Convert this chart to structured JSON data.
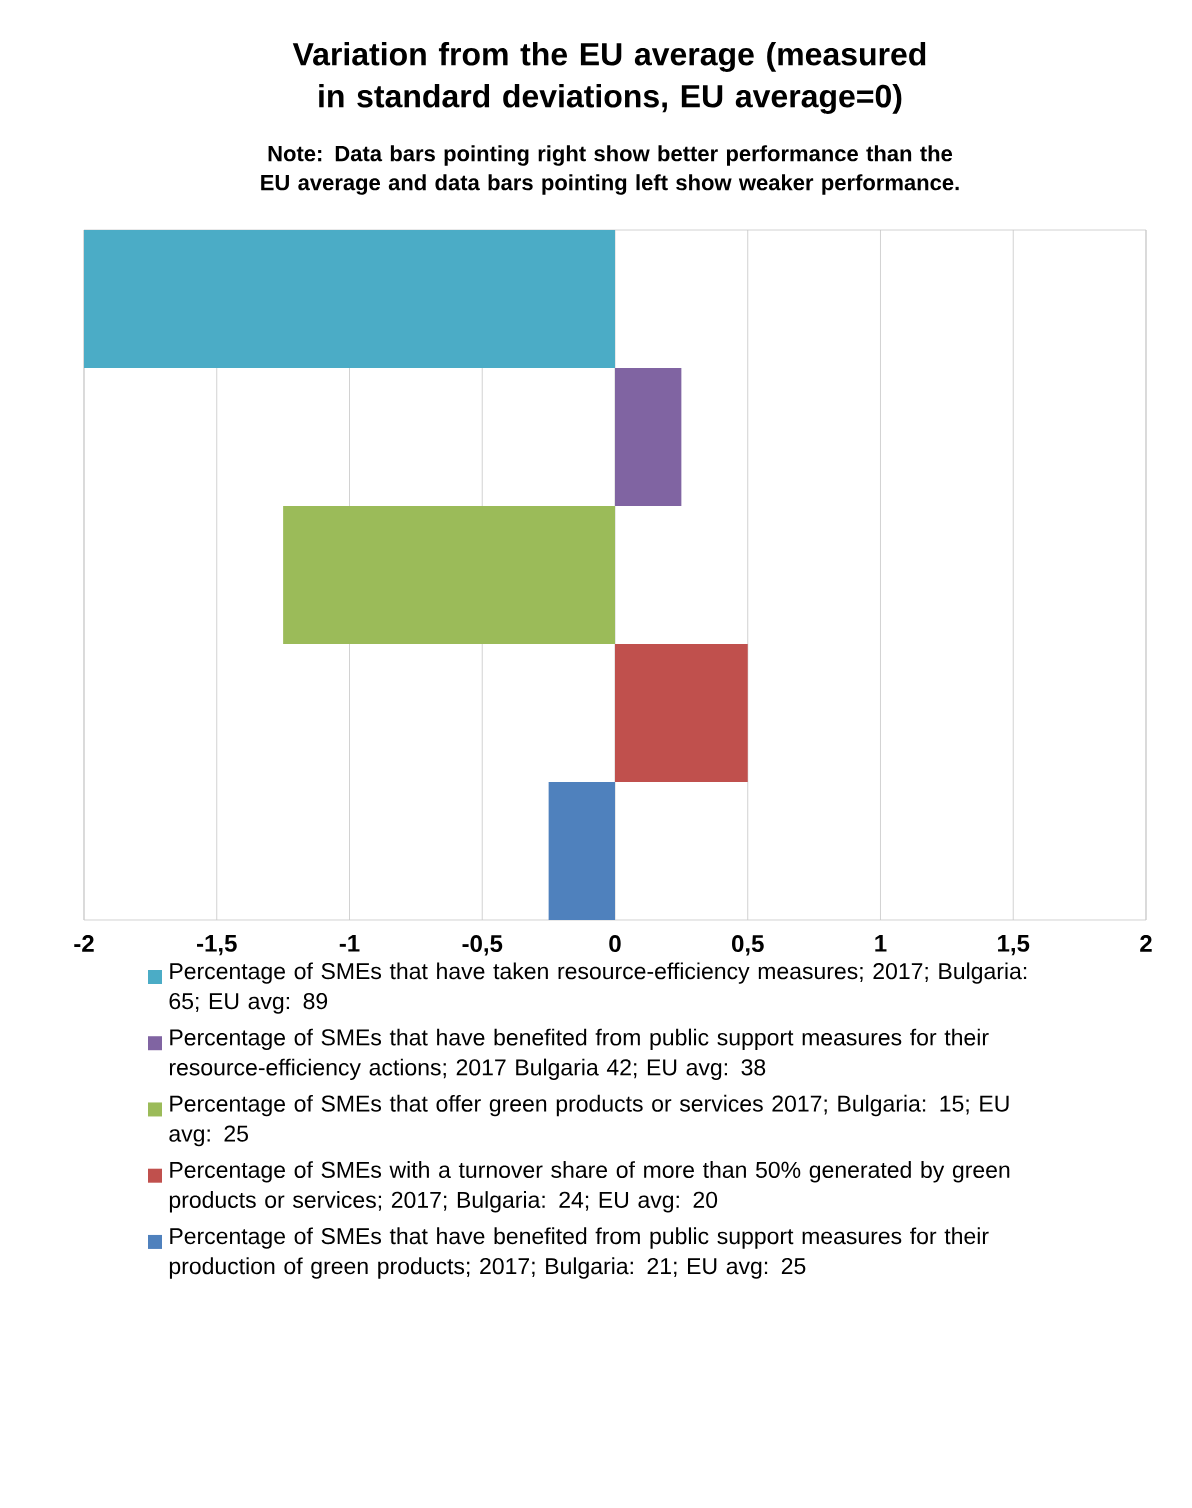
{
  "chart_data": {
    "type": "bar",
    "orientation": "horizontal",
    "title": "Variation from the EU average (measured in standard deviations, EU average=0)",
    "subtitle": "Note: Data bars pointing right show better performance than the EU average and data bars pointing left show weaker performance.",
    "categories": [
      null,
      null,
      null,
      null,
      null
    ],
    "series": [
      {
        "name": "Percentage of SMEs that have taken resource-efficiency measures; 2017; Bulgaria: 65; EU avg: 89",
        "color": "#4bacc6",
        "values": [
          -2,
          null,
          null,
          null,
          null
        ]
      },
      {
        "name": "Percentage of SMEs that have benefited from public support measures for their resource-efficiency actions; 2017 Bulgaria 42; EU avg: 38",
        "color": "#8064a2",
        "values": [
          null,
          0.25,
          null,
          null,
          null
        ]
      },
      {
        "name": "Percentage of SMEs that offer green products or services 2017; Bulgaria: 15; EU avg: 25",
        "color": "#9bbb59",
        "values": [
          null,
          null,
          -1.25,
          null,
          null
        ]
      },
      {
        "name": "Percentage of SMEs with a turnover share of more than 50% generated by green products or services; 2017; Bulgaria: 24; EU avg: 20",
        "color": "#c0504d",
        "values": [
          null,
          null,
          null,
          0.5,
          null
        ]
      },
      {
        "name": "Percentage of SMEs that have benefited from public support measures for their production of green products; 2017; Bulgaria: 21; EU avg: 25",
        "color": "#4f81bd",
        "values": [
          null,
          null,
          null,
          null,
          -0.25
        ]
      }
    ],
    "xlim": [
      -2,
      2
    ],
    "xticks": [
      -2,
      {
        "value": -1.5,
        "label": "-1,5"
      },
      -1,
      {
        "value": -0.5,
        "label": "-0,5"
      },
      0,
      {
        "value": 0.5,
        "label": "0,5"
      },
      1,
      {
        "value": 1.5,
        "label": "1,5"
      },
      2
    ],
    "grid": "x",
    "legend": "bottom"
  }
}
